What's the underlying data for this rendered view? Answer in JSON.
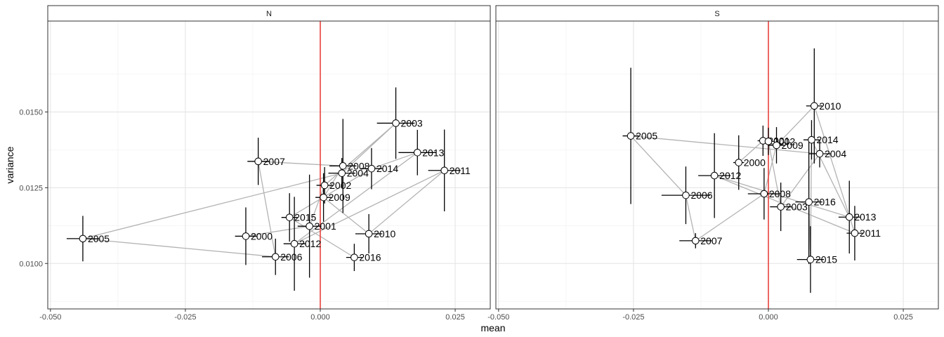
{
  "chart_data": {
    "type": "scatter",
    "xlabel": "mean",
    "ylabel": "variance",
    "xlim": [
      -0.0505,
      0.0315
    ],
    "ylim": [
      0.0085,
      0.018
    ],
    "x_ticks": [
      "-0.050",
      "-0.025",
      "0.000",
      "0.025"
    ],
    "x_tick_values": [
      -0.05,
      -0.025,
      0.0,
      0.025
    ],
    "y_ticks": [
      "0.0100",
      "0.0125",
      "0.0150"
    ],
    "y_tick_values": [
      0.01,
      0.0125,
      0.015
    ],
    "grid": true,
    "reference_line": {
      "x": 0,
      "color": "#e8413c"
    },
    "colors": {
      "path": "#b3b3b3",
      "errorbar": "#000000",
      "point_fill": "#ffffff",
      "strip": "#ffffff"
    },
    "panels": [
      {
        "name": "N",
        "points": [
          {
            "label": "2000",
            "x": -0.0138,
            "y": 0.0109,
            "xerr": 0.002,
            "yerr": 0.00095
          },
          {
            "label": "2001",
            "x": -0.002,
            "y": 0.01123,
            "xerr": 0.0022,
            "yerr": 0.0017
          },
          {
            "label": "2002",
            "x": 0.0008,
            "y": 0.01258,
            "xerr": 0.0015,
            "yerr": 0.0006
          },
          {
            "label": "2003",
            "x": 0.014,
            "y": 0.01463,
            "xerr": 0.0035,
            "yerr": 0.00118
          },
          {
            "label": "2004",
            "x": 0.004,
            "y": 0.01298,
            "xerr": 0.0025,
            "yerr": 0.0005
          },
          {
            "label": "2005",
            "x": -0.044,
            "y": 0.01082,
            "xerr": 0.003,
            "yerr": 0.00075
          },
          {
            "label": "2006",
            "x": -0.0083,
            "y": 0.01022,
            "xerr": 0.0025,
            "yerr": 0.0006
          },
          {
            "label": "2007",
            "x": -0.0115,
            "y": 0.01337,
            "xerr": 0.002,
            "yerr": 0.00078
          },
          {
            "label": "2008",
            "x": 0.0042,
            "y": 0.01322,
            "xerr": 0.0025,
            "yerr": 0.00155
          },
          {
            "label": "2009",
            "x": 0.0006,
            "y": 0.01218,
            "xerr": 0.0015,
            "yerr": 0.0008
          },
          {
            "label": "2010",
            "x": 0.009,
            "y": 0.01098,
            "xerr": 0.0025,
            "yerr": 0.00065
          },
          {
            "label": "2011",
            "x": 0.023,
            "y": 0.01307,
            "xerr": 0.003,
            "yerr": 0.00135
          },
          {
            "label": "2012",
            "x": -0.0048,
            "y": 0.01065,
            "xerr": 0.002,
            "yerr": 0.00155
          },
          {
            "label": "2013",
            "x": 0.018,
            "y": 0.01366,
            "xerr": 0.0035,
            "yerr": 0.00075
          },
          {
            "label": "2014",
            "x": 0.0095,
            "y": 0.01313,
            "xerr": 0.002,
            "yerr": 0.00068
          },
          {
            "label": "2015",
            "x": -0.0057,
            "y": 0.01152,
            "xerr": 0.0015,
            "yerr": 0.0008
          },
          {
            "label": "2016",
            "x": 0.0063,
            "y": 0.0102,
            "xerr": 0.0015,
            "yerr": 0.00045
          }
        ]
      },
      {
        "name": "S",
        "points": [
          {
            "label": "2000",
            "x": -0.0055,
            "y": 0.01333,
            "xerr": 0.001,
            "yerr": 0.0009
          },
          {
            "label": "2001",
            "x": -0.001,
            "y": 0.01405,
            "xerr": 0.001,
            "yerr": 0.0005
          },
          {
            "label": "2002",
            "x": 0.0,
            "y": 0.01403,
            "xerr": 0.001,
            "yerr": 0.00045
          },
          {
            "label": "2003",
            "x": 0.0023,
            "y": 0.01187,
            "xerr": 0.002,
            "yerr": 0.0008
          },
          {
            "label": "2004",
            "x": 0.0095,
            "y": 0.01362,
            "xerr": 0.002,
            "yerr": 0.00045
          },
          {
            "label": "2005",
            "x": -0.0255,
            "y": 0.01421,
            "xerr": 0.0015,
            "yerr": 0.00225
          },
          {
            "label": "2006",
            "x": -0.0153,
            "y": 0.01225,
            "xerr": 0.0045,
            "yerr": 0.00095
          },
          {
            "label": "2007",
            "x": -0.0135,
            "y": 0.01075,
            "xerr": 0.003,
            "yerr": 0.00025
          },
          {
            "label": "2008",
            "x": -0.0008,
            "y": 0.0123,
            "xerr": 0.003,
            "yerr": 0.00085
          },
          {
            "label": "2009",
            "x": 0.0015,
            "y": 0.0139,
            "xerr": 0.0015,
            "yerr": 0.0006
          },
          {
            "label": "2010",
            "x": 0.0085,
            "y": 0.0152,
            "xerr": 0.0015,
            "yerr": 0.0019
          },
          {
            "label": "2011",
            "x": 0.016,
            "y": 0.011,
            "xerr": 0.0015,
            "yerr": 0.0009
          },
          {
            "label": "2012",
            "x": -0.01,
            "y": 0.0129,
            "xerr": 0.003,
            "yerr": 0.0014
          },
          {
            "label": "2013",
            "x": 0.015,
            "y": 0.01153,
            "xerr": 0.002,
            "yerr": 0.0012
          },
          {
            "label": "2014",
            "x": 0.008,
            "y": 0.01408,
            "xerr": 0.0015,
            "yerr": 0.00065
          },
          {
            "label": "2015",
            "x": 0.0078,
            "y": 0.01013,
            "xerr": 0.0025,
            "yerr": 0.0011
          },
          {
            "label": "2016",
            "x": 0.0075,
            "y": 0.01203,
            "xerr": 0.0025,
            "yerr": 0.00205
          }
        ]
      }
    ]
  }
}
